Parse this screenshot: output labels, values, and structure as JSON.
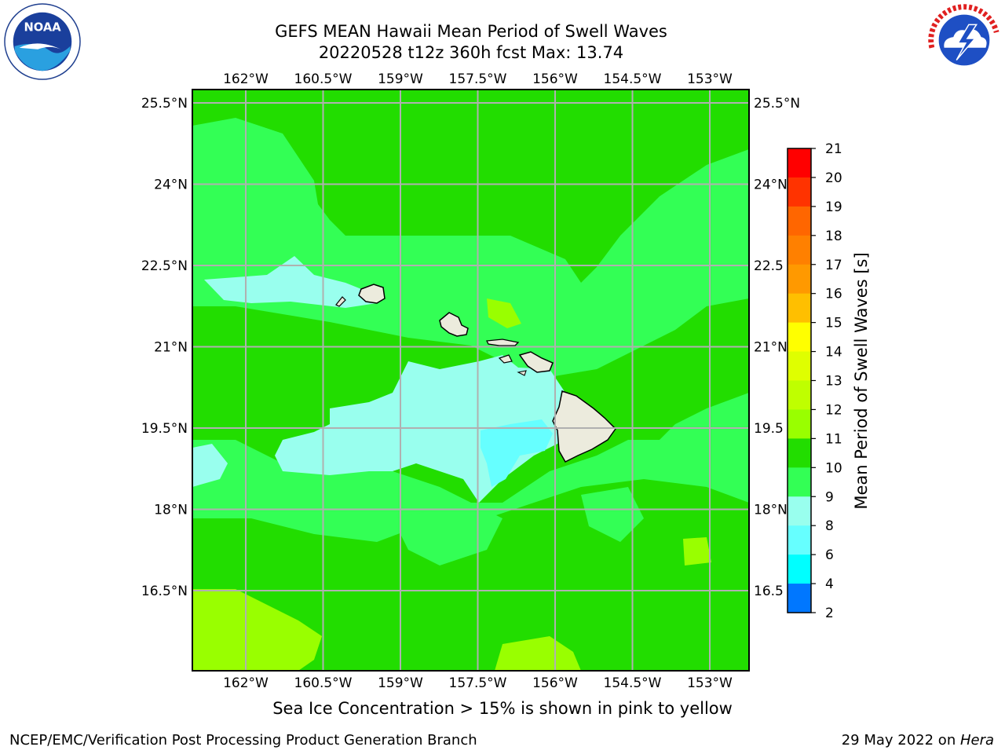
{
  "header": {
    "title_line1": "GEFS MEAN Hawaii Mean Period of Swell Waves",
    "title_line2": "20220528 t12z 360h fcst   Max: 13.74"
  },
  "logos": {
    "left": {
      "name": "noaa-logo",
      "icon": "noaa-seagull-emblem"
    },
    "right": {
      "name": "nws-logo",
      "icon": "nws-lightning-cloud-emblem"
    }
  },
  "map": {
    "longitude_ticks": [
      "162°W",
      "160.5°W",
      "159°W",
      "157.5°W",
      "156°W",
      "154.5°W",
      "153°W"
    ],
    "latitude_ticks": [
      "25.5°N",
      "24°N",
      "22.5°N",
      "21°N",
      "19.5°N",
      "18°N",
      "16.5°N"
    ],
    "latitude_ticks_right": [
      "25.5°N",
      "24°N",
      "22.5",
      "21°N",
      "19.5",
      "18°N",
      "16.5"
    ],
    "gridlines": true,
    "field": "Mean Period of Swell Waves",
    "dominant_band": "10-11",
    "land_color": "#ecebdd"
  },
  "colorbar": {
    "label": "Mean Period of Swell Waves [s]",
    "ticks": [
      "21",
      "20",
      "19",
      "18",
      "17",
      "16",
      "15",
      "14",
      "13",
      "12",
      "11",
      "10",
      "9",
      "8",
      "6",
      "4",
      "2"
    ],
    "colors": [
      "#ff0000",
      "#ff3300",
      "#ff6600",
      "#ff8000",
      "#ff9900",
      "#ffbf00",
      "#ffff00",
      "#dfff00",
      "#bfff00",
      "#99ff00",
      "#22dd00",
      "#33ff55",
      "#99ffee",
      "#66ffff",
      "#00ffff",
      "#0077ff",
      "#0000ff"
    ]
  },
  "caption": "Sea Ice Concentration > 15% is shown in pink to yellow",
  "footer": {
    "left": "NCEP/EMC/Verification Post Processing Product Generation Branch",
    "right_prefix": "29 May 2022 on ",
    "right_machine": "Hera"
  }
}
